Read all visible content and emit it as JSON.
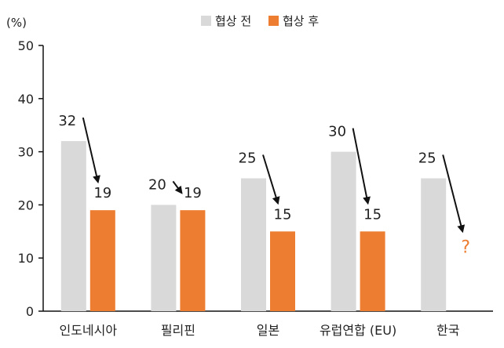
{
  "chart_data": {
    "type": "bar",
    "title": "",
    "xlabel": "",
    "ylabel": "(%)",
    "ylim": [
      0,
      50
    ],
    "yticks": [
      0,
      10,
      20,
      30,
      40,
      50
    ],
    "grid": false,
    "legend_position": "top-center",
    "categories": [
      "인도네시아",
      "필리핀",
      "일본",
      "유럽연합 (EU)",
      "한국"
    ],
    "series": [
      {
        "name": "협상 전",
        "color": "#d9d9d9",
        "values": [
          32,
          20,
          25,
          30,
          25
        ]
      },
      {
        "name": "협상 후",
        "color": "#ed7d31",
        "values": [
          19,
          19,
          15,
          15,
          null
        ]
      }
    ],
    "unknown_marker": {
      "category": "한국",
      "text": "?",
      "color": "#ed7d31"
    }
  }
}
